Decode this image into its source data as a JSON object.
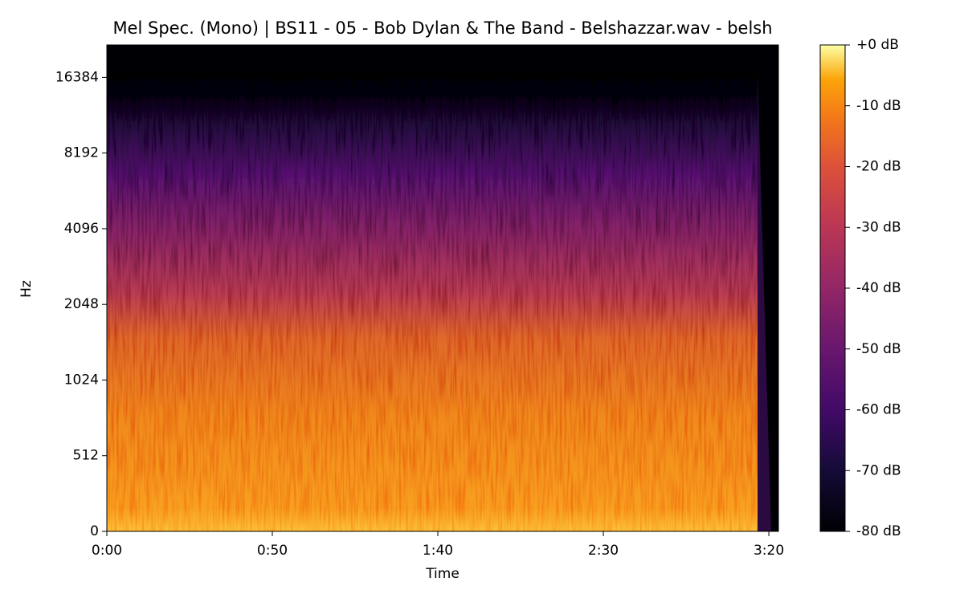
{
  "chart_data": {
    "type": "spectrogram",
    "title": "Mel Spec. (Mono) | BS11 - 05 - Bob Dylan & The Band - Belshazzar.wav - belsh",
    "x_label": "Time",
    "y_label": "Hz",
    "xlim": [
      0,
      202.9
    ],
    "xticks": [
      {
        "value": 0,
        "label": "0:00"
      },
      {
        "value": 50,
        "label": "0:50"
      },
      {
        "value": 100,
        "label": "1:40"
      },
      {
        "value": 150,
        "label": "2:30"
      },
      {
        "value": 200,
        "label": "3:20"
      }
    ],
    "yscale": "symlog",
    "linthresh": 512,
    "ylim": [
      0,
      22050
    ],
    "yticks": [
      0,
      512,
      1024,
      2048,
      4096,
      8192,
      16384
    ],
    "colormap": "inferno",
    "clim": [
      -80,
      0
    ],
    "cticks": [
      {
        "value": 0,
        "label": "+0 dB"
      },
      {
        "value": -10,
        "label": "-10 dB"
      },
      {
        "value": -20,
        "label": "-20 dB"
      },
      {
        "value": -30,
        "label": "-30 dB"
      },
      {
        "value": -40,
        "label": "-40 dB"
      },
      {
        "value": -50,
        "label": "-50 dB"
      },
      {
        "value": -60,
        "label": "-60 dB"
      },
      {
        "value": -70,
        "label": "-70 dB"
      },
      {
        "value": -80,
        "label": "-80 dB"
      }
    ]
  }
}
